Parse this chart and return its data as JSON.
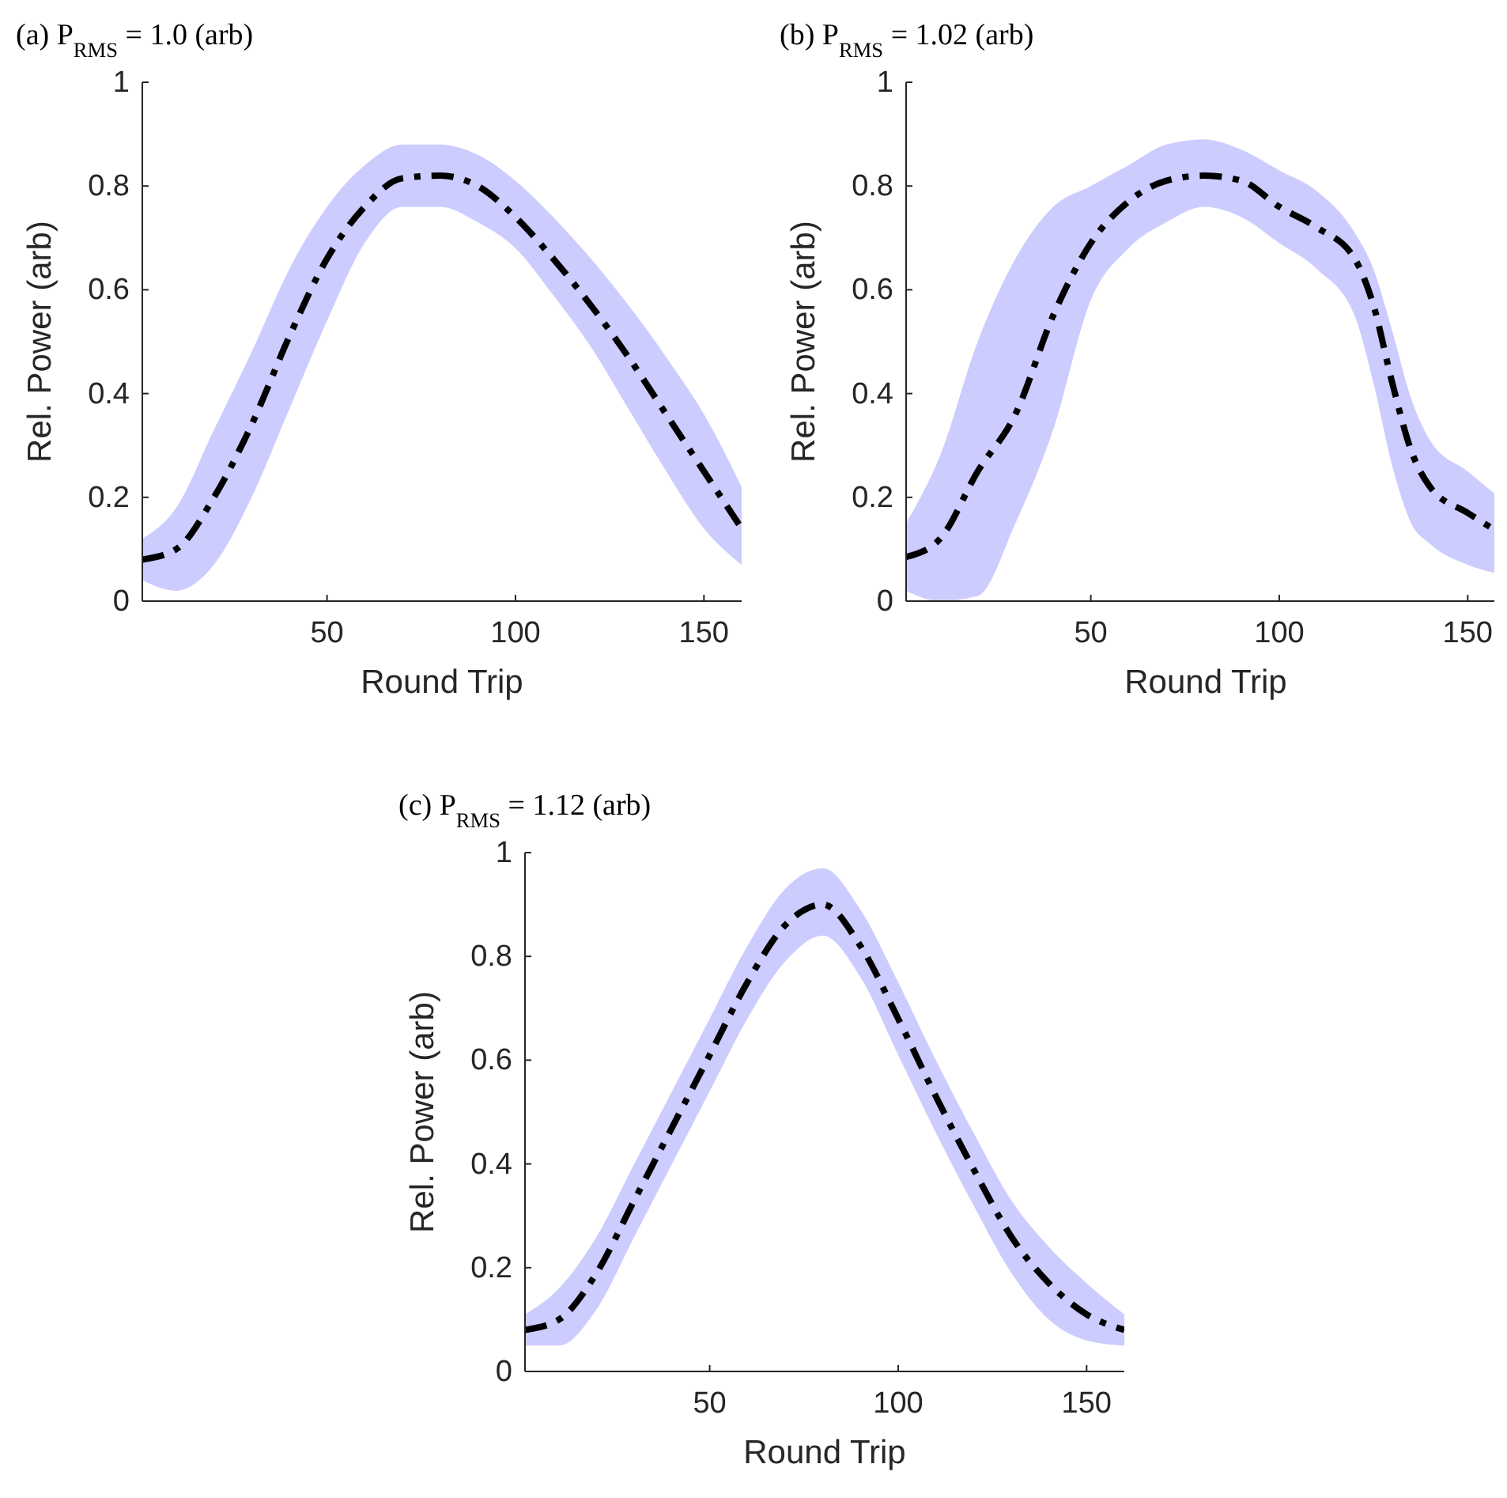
{
  "chart_data": [
    {
      "type": "line",
      "title": "(a) P$_{RMS}$ = 1.0 (arb)",
      "xlabel": "Round Trip",
      "ylabel": "Rel. Power (arb)",
      "xlim": [
        1,
        160
      ],
      "xticks": [
        50,
        100,
        150
      ],
      "ylim": [
        0,
        1
      ],
      "yticks": [
        0,
        0.2,
        0.4,
        0.6,
        0.8,
        1
      ],
      "line_style": "dashed",
      "x": [
        1,
        10,
        20,
        30,
        40,
        50,
        60,
        70,
        80,
        90,
        100,
        110,
        120,
        130,
        140,
        150,
        160
      ],
      "series": [
        {
          "color": "#000000",
          "values": [
            0.08,
            0.1,
            0.2,
            0.34,
            0.51,
            0.66,
            0.76,
            0.815,
            0.82,
            0.8,
            0.74,
            0.66,
            0.57,
            0.47,
            0.36,
            0.25,
            0.14
          ],
          "lower": [
            0.04,
            0.02,
            0.07,
            0.2,
            0.37,
            0.54,
            0.69,
            0.76,
            0.76,
            0.73,
            0.68,
            0.59,
            0.49,
            0.37,
            0.25,
            0.14,
            0.07
          ],
          "upper": [
            0.12,
            0.18,
            0.33,
            0.48,
            0.64,
            0.76,
            0.84,
            0.88,
            0.88,
            0.86,
            0.81,
            0.74,
            0.66,
            0.57,
            0.47,
            0.36,
            0.22
          ]
        }
      ]
    },
    {
      "type": "line",
      "title": "(b) P$_{RMS}$ = 1.02 (arb)",
      "xlabel": "Round Trip",
      "ylabel": "Rel. Power (arb)",
      "xlim": [
        1,
        160
      ],
      "xticks": [
        50,
        100,
        150
      ],
      "ylim": [
        0,
        1
      ],
      "yticks": [
        0,
        0.2,
        0.4,
        0.6,
        0.8,
        1
      ],
      "line_style": "dashed",
      "x": [
        1,
        10,
        20,
        30,
        40,
        50,
        60,
        70,
        80,
        90,
        100,
        110,
        120,
        125,
        130,
        135,
        140,
        150,
        160
      ],
      "series": [
        {
          "color": "#000000",
          "values": [
            0.085,
            0.12,
            0.25,
            0.36,
            0.55,
            0.69,
            0.77,
            0.81,
            0.82,
            0.81,
            0.76,
            0.72,
            0.66,
            0.57,
            0.42,
            0.29,
            0.22,
            0.17,
            0.125
          ],
          "lower": [
            0.02,
            0,
            0.01,
            0.15,
            0.33,
            0.58,
            0.68,
            0.73,
            0.76,
            0.74,
            0.69,
            0.64,
            0.55,
            0.42,
            0.26,
            0.15,
            0.11,
            0.07,
            0.05
          ],
          "upper": [
            0.15,
            0.28,
            0.5,
            0.66,
            0.76,
            0.8,
            0.84,
            0.88,
            0.89,
            0.87,
            0.83,
            0.79,
            0.71,
            0.64,
            0.52,
            0.39,
            0.31,
            0.25,
            0.19
          ]
        }
      ]
    },
    {
      "type": "line",
      "title": "(c) P$_{RMS}$ = 1.12 (arb)",
      "xlabel": "Round Trip",
      "ylabel": "Rel. Power (arb)",
      "xlim": [
        1,
        160
      ],
      "xticks": [
        50,
        100,
        150
      ],
      "ylim": [
        0,
        1
      ],
      "yticks": [
        0,
        0.2,
        0.4,
        0.6,
        0.8,
        1
      ],
      "line_style": "dashed",
      "x": [
        1,
        10,
        20,
        30,
        40,
        50,
        60,
        70,
        80,
        90,
        100,
        110,
        120,
        130,
        140,
        150,
        160
      ],
      "series": [
        {
          "color": "#000000",
          "values": [
            0.08,
            0.1,
            0.19,
            0.33,
            0.47,
            0.61,
            0.75,
            0.86,
            0.9,
            0.82,
            0.68,
            0.53,
            0.39,
            0.26,
            0.17,
            0.11,
            0.08
          ],
          "lower": [
            0.05,
            0.05,
            0.12,
            0.26,
            0.4,
            0.54,
            0.68,
            0.79,
            0.84,
            0.76,
            0.61,
            0.46,
            0.32,
            0.19,
            0.1,
            0.06,
            0.05
          ],
          "upper": [
            0.11,
            0.16,
            0.26,
            0.4,
            0.54,
            0.68,
            0.82,
            0.93,
            0.97,
            0.89,
            0.75,
            0.6,
            0.46,
            0.33,
            0.24,
            0.17,
            0.11
          ]
        }
      ]
    }
  ]
}
